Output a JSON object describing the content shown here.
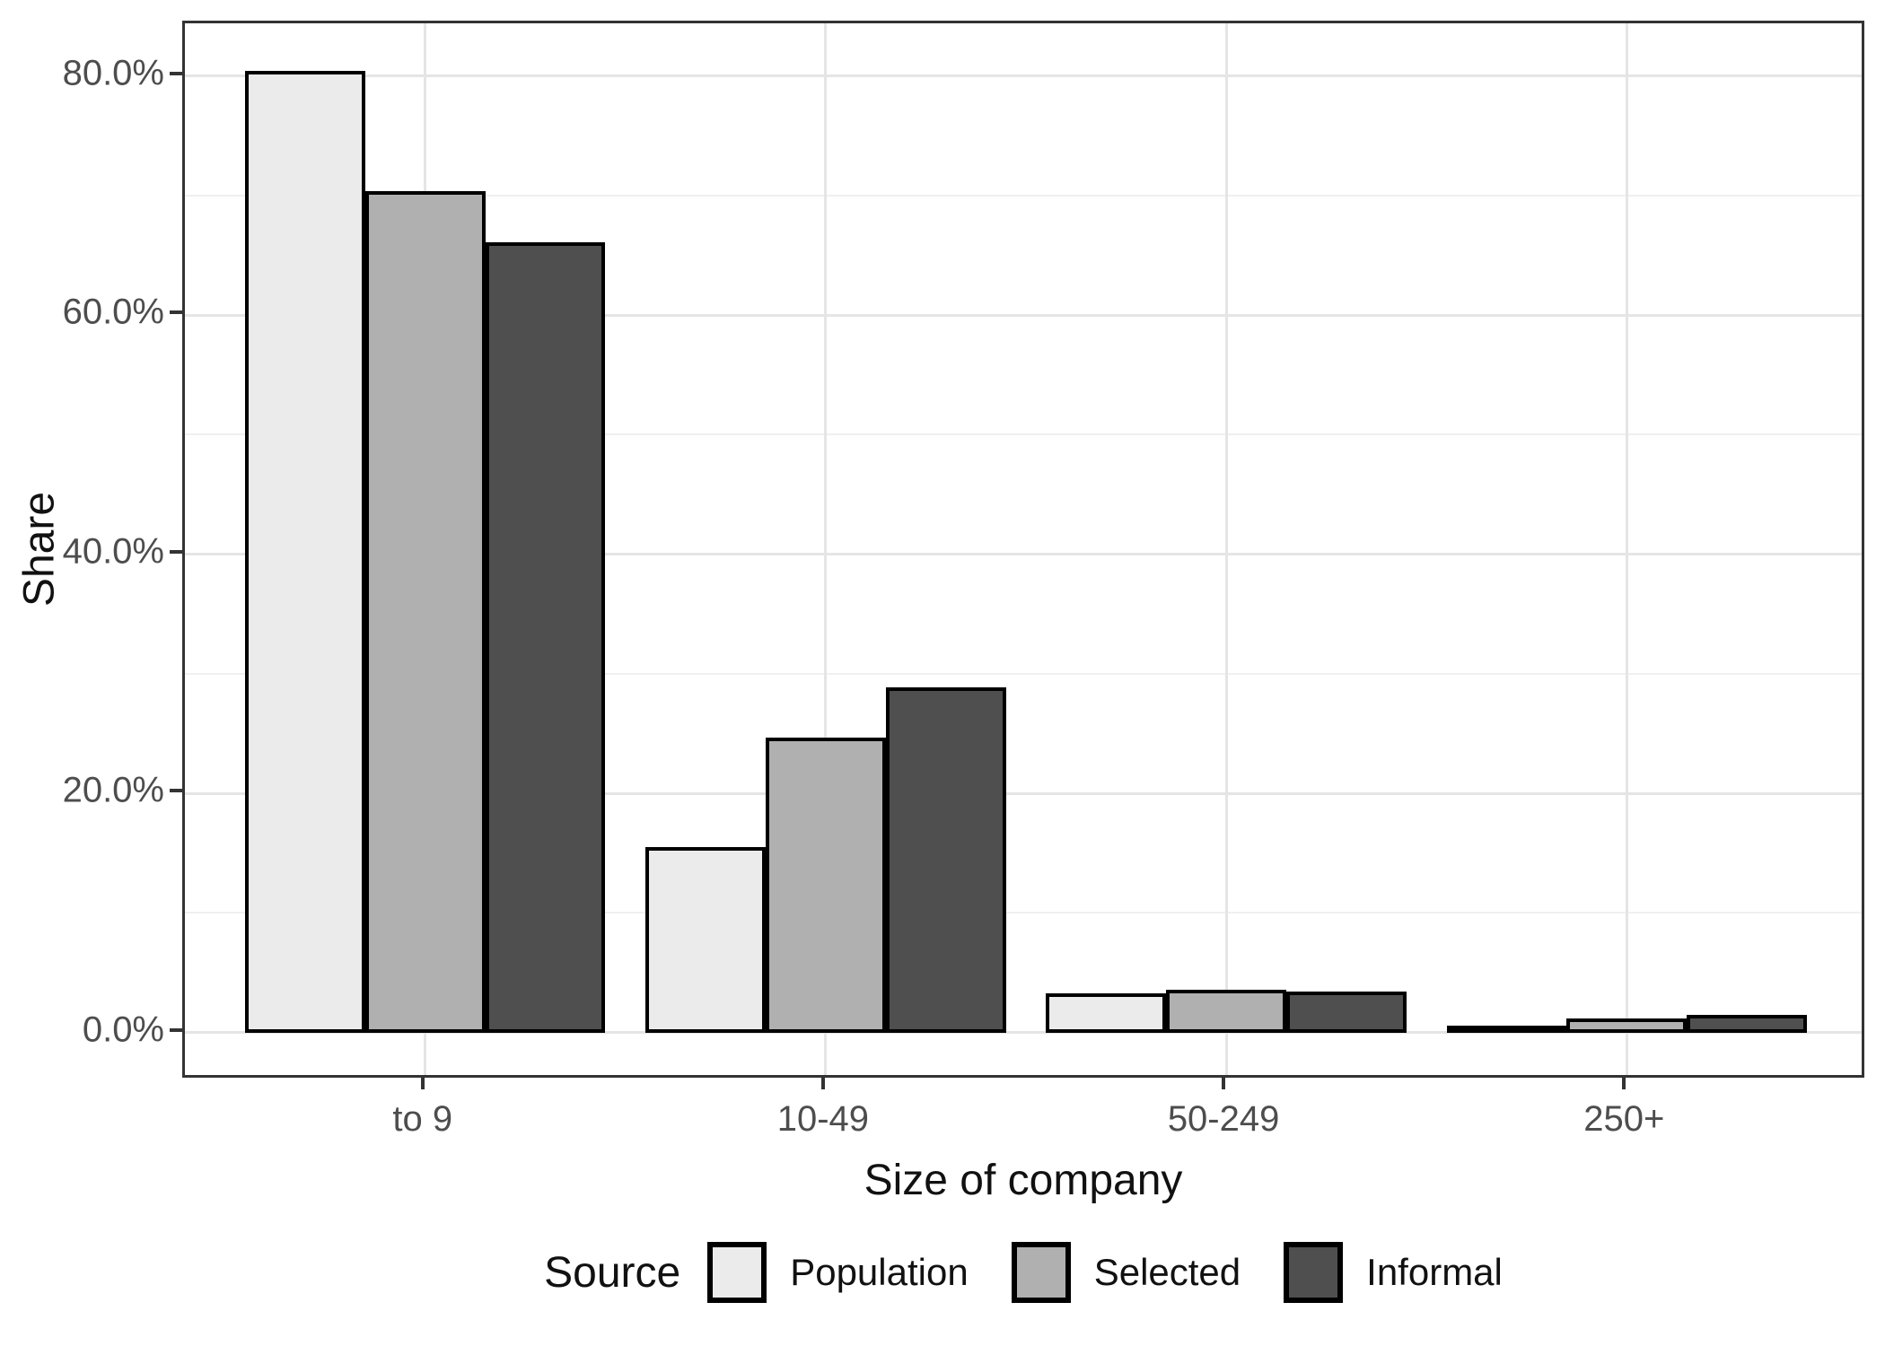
{
  "chart_data": {
    "type": "bar",
    "title": "",
    "categories": [
      "to 9",
      "10-49",
      "50-249",
      "250+"
    ],
    "series": [
      {
        "name": "Population",
        "color": "#ebebeb",
        "values": [
          80.4,
          15.5,
          3.3,
          0.6
        ]
      },
      {
        "name": "Selected",
        "color": "#b0b0b0",
        "values": [
          70.4,
          24.7,
          3.6,
          1.2
        ]
      },
      {
        "name": "Informal",
        "color": "#4f4f4f",
        "values": [
          66.1,
          28.9,
          3.4,
          1.5
        ]
      }
    ],
    "xlabel": "Size of company",
    "ylabel": "Share",
    "ylim": [
      -4,
      84.4
    ],
    "y_ticks_major": [
      0,
      20,
      40,
      60,
      80
    ],
    "y_tick_labels": [
      "0.0%",
      "20.0%",
      "40.0%",
      "60.0%",
      "80.0%"
    ],
    "y_ticks_minor": [
      10,
      30,
      50,
      70
    ],
    "grid": {
      "horizontal": "major+minor",
      "vertical": "category-centers"
    },
    "bar_outline_color": "#000000",
    "legend": {
      "title": "Source",
      "position": "bottom"
    }
  }
}
